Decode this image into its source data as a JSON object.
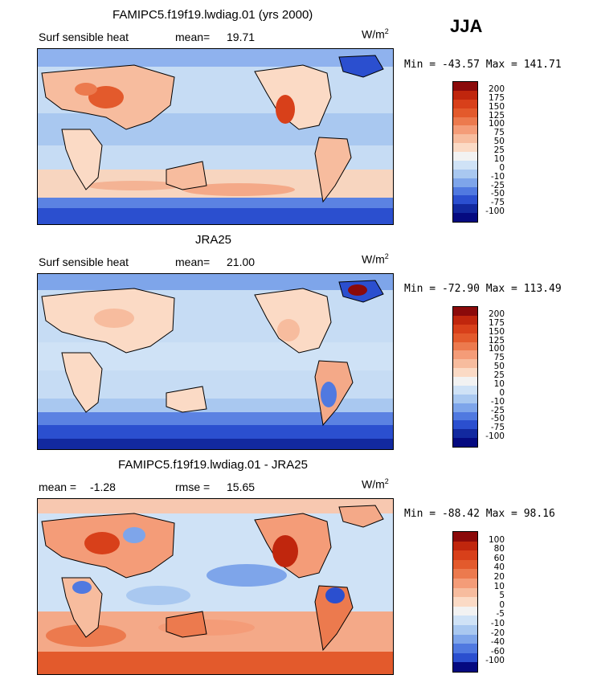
{
  "season": "JJA",
  "units": "W/m",
  "units_exp": "2",
  "panel1": {
    "title": "FAMIPC5.f19f19.lwdiag.01 (yrs 2000)",
    "var_label": "Surf sensible heat",
    "mean_label": "mean=",
    "mean_value": "19.71",
    "minmax": "Min = -43.57 Max = 141.71"
  },
  "panel2": {
    "title": "JRA25",
    "var_label": "Surf sensible heat",
    "mean_label": "mean=",
    "mean_value": "21.00",
    "minmax": "Min = -72.90 Max = 113.49"
  },
  "panel3": {
    "title": "FAMIPC5.f19f19.lwdiag.01 - JRA25",
    "mean_label": "mean =",
    "mean_value": "-1.28",
    "rmse_label": "rmse =",
    "rmse_value": "15.65",
    "minmax": "Min = -88.42 Max =  98.16"
  },
  "colorbar_abs": {
    "ticks": [
      "200",
      "175",
      "150",
      "125",
      "100",
      "75",
      "50",
      "25",
      "10",
      "0",
      "-10",
      "-25",
      "-50",
      "-75",
      "-100"
    ],
    "colors": [
      "#8b0a0a",
      "#c0260d",
      "#d8401a",
      "#e35a2c",
      "#ec7a4e",
      "#f49c78",
      "#f7bc9e",
      "#fbdac5",
      "#f2f2f2",
      "#cfe2f6",
      "#a9c8f0",
      "#7ea5ea",
      "#5079e0",
      "#2b4fcf",
      "#12299f",
      "#050a80"
    ]
  },
  "colorbar_diff": {
    "ticks": [
      "100",
      "80",
      "60",
      "40",
      "20",
      "10",
      "5",
      "0",
      "-5",
      "-10",
      "-20",
      "-40",
      "-60",
      "-100"
    ],
    "colors": [
      "#8b0a0a",
      "#c0260d",
      "#d8401a",
      "#e35a2c",
      "#ec7a4e",
      "#f49c78",
      "#f7bc9e",
      "#fbdac5",
      "#f2f2f2",
      "#cfe2f6",
      "#a9c8f0",
      "#7ea5ea",
      "#5079e0",
      "#2b4fcf",
      "#050a80"
    ]
  }
}
